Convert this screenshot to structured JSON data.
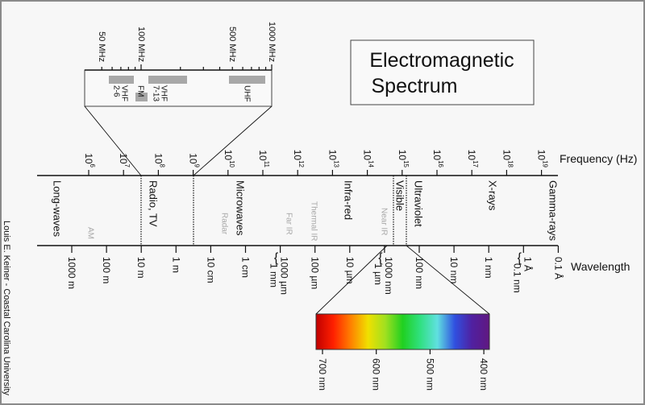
{
  "title": [
    "Electromagnetic",
    "Spectrum"
  ],
  "credit": "Louis E. Keiner - Coastal Carolina University",
  "frequency_axis": {
    "label": "Frequency (Hz)",
    "ticks": [
      {
        "base": "10",
        "exp": "6"
      },
      {
        "base": "10",
        "exp": "7"
      },
      {
        "base": "10",
        "exp": "8"
      },
      {
        "base": "10",
        "exp": "9"
      },
      {
        "base": "10",
        "exp": "10"
      },
      {
        "base": "10",
        "exp": "11"
      },
      {
        "base": "10",
        "exp": "12"
      },
      {
        "base": "10",
        "exp": "13"
      },
      {
        "base": "10",
        "exp": "14"
      },
      {
        "base": "10",
        "exp": "15"
      },
      {
        "base": "10",
        "exp": "16"
      },
      {
        "base": "10",
        "exp": "17"
      },
      {
        "base": "10",
        "exp": "18"
      },
      {
        "base": "10",
        "exp": "19"
      }
    ]
  },
  "wavelength_axis": {
    "label": "Wavelength",
    "ticks": [
      [
        "1000 m"
      ],
      [
        "100 m"
      ],
      [
        "10 m"
      ],
      [
        "1 m"
      ],
      [
        "10 cm"
      ],
      [
        "1 cm"
      ],
      [
        "1000 µm",
        "1 mm"
      ],
      [
        "100 µm"
      ],
      [
        "10 µm"
      ],
      [
        "1000 nm",
        "1 µm"
      ],
      [
        "100 nm"
      ],
      [
        "10 nm"
      ],
      [
        "1 nm"
      ],
      [
        "1 Å",
        "0.1 nm"
      ],
      [
        "0.1 Å"
      ]
    ]
  },
  "regions": [
    {
      "label": "Long-waves",
      "style": "main"
    },
    {
      "label": "AM",
      "style": "sub"
    },
    {
      "label": "Radio, TV",
      "style": "main"
    },
    {
      "label": "Radar",
      "style": "sub"
    },
    {
      "label": "Microwaves",
      "style": "main"
    },
    {
      "label": "Far IR",
      "style": "sub"
    },
    {
      "label": "Thermal IR",
      "style": "sub"
    },
    {
      "label": "Infra-red",
      "style": "main"
    },
    {
      "label": "Near IR",
      "style": "sub"
    },
    {
      "label": "Visible",
      "style": "main"
    },
    {
      "label": "Ultraviolet",
      "style": "main"
    },
    {
      "label": "X-rays",
      "style": "main"
    },
    {
      "label": "Gamma-rays",
      "style": "main"
    }
  ],
  "radio_inset": {
    "ticks": [
      "50 MHz",
      "100 MHz",
      "500 MHz",
      "1000 MHz"
    ],
    "bands": [
      {
        "label": [
          "VHF",
          "2-6"
        ],
        "from_mhz": 54,
        "to_mhz": 88
      },
      {
        "label": [
          "FM"
        ],
        "from_mhz": 88,
        "to_mhz": 108
      },
      {
        "label": [
          "VHF",
          "7-13"
        ],
        "from_mhz": 174,
        "to_mhz": 216
      },
      {
        "label": [
          "UHF"
        ],
        "from_mhz": 470,
        "to_mhz": 890
      }
    ]
  },
  "visible_spectrum": {
    "ticks": [
      "700 nm",
      "600 nm",
      "500 nm",
      "400 nm"
    ],
    "colors": [
      "#c00000",
      "#ff2000",
      "#ff8000",
      "#f0e000",
      "#a0e020",
      "#20d020",
      "#30e080",
      "#60e0e0",
      "#3050e0",
      "#5020a0",
      "#601880"
    ]
  },
  "colors": {
    "background": "#f7f7f7",
    "band_fill": "#a8a8a8",
    "sub_label": "#a8a8a8"
  }
}
